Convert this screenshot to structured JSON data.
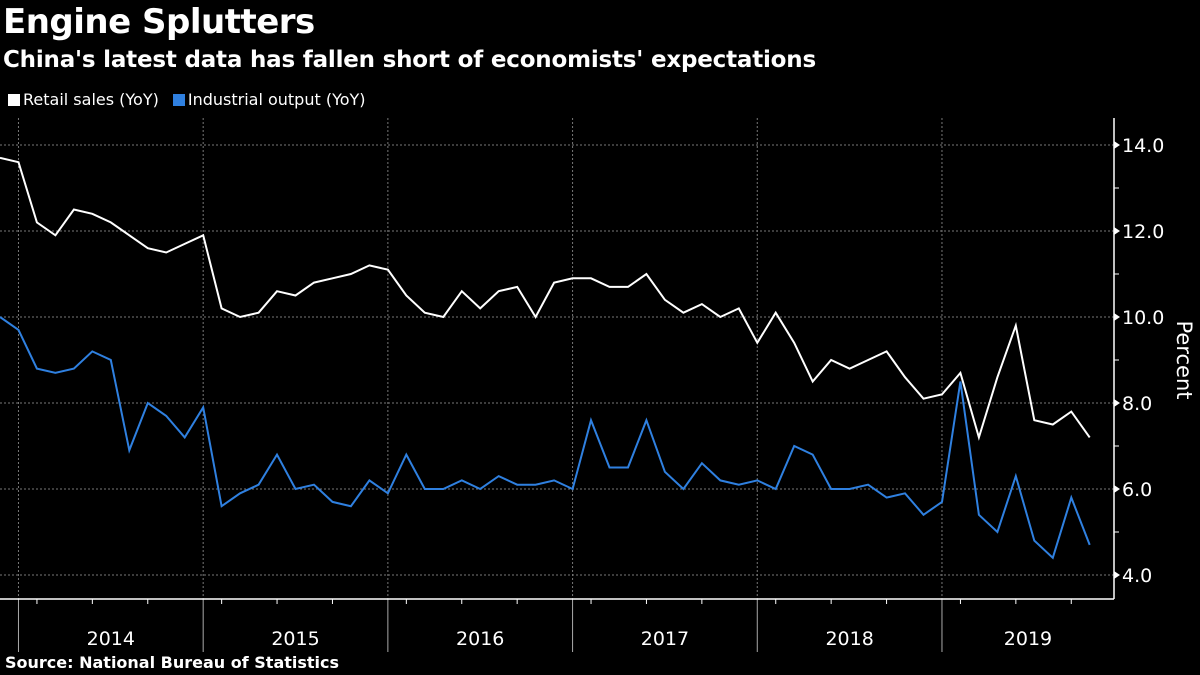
{
  "header": {
    "title": "Engine Splutters",
    "subtitle": "China's latest data has fallen short of economists' expectations"
  },
  "legend": [
    {
      "label": "Retail sales (YoY)",
      "color": "#ffffff"
    },
    {
      "label": "Industrial output (YoY)",
      "color": "#2f80e0"
    }
  ],
  "footer": {
    "source": "Source: National Bureau of Statistics"
  },
  "chart_data": {
    "type": "line",
    "title": "Engine Splutters",
    "subtitle": "China's latest data has fallen short of economists' expectations",
    "xlabel": "",
    "ylabel": "Percent",
    "ylim": [
      3.4,
      14.6
    ],
    "y_ticks": [
      4.0,
      6.0,
      8.0,
      10.0,
      12.0,
      14.0
    ],
    "y_tick_labels": [
      "4.0",
      "6.0",
      "8.0",
      "10.0",
      "12.0",
      "14.0"
    ],
    "y_axis_side": "right",
    "grid": true,
    "legend_position": "top-left",
    "year_labels": [
      "2014",
      "2015",
      "2016",
      "2017",
      "2018",
      "2019"
    ],
    "x": [
      "2013-11",
      "2013-12",
      "2014-03",
      "2014-04",
      "2014-05",
      "2014-06",
      "2014-07",
      "2014-08",
      "2014-09",
      "2014-10",
      "2014-11",
      "2014-12",
      "2015-03",
      "2015-04",
      "2015-05",
      "2015-06",
      "2015-07",
      "2015-08",
      "2015-09",
      "2015-10",
      "2015-11",
      "2015-12",
      "2016-03",
      "2016-04",
      "2016-05",
      "2016-06",
      "2016-07",
      "2016-08",
      "2016-09",
      "2016-10",
      "2016-11",
      "2016-12",
      "2017-03",
      "2017-04",
      "2017-05",
      "2017-06",
      "2017-07",
      "2017-08",
      "2017-09",
      "2017-10",
      "2017-11",
      "2017-12",
      "2018-03",
      "2018-04",
      "2018-05",
      "2018-06",
      "2018-07",
      "2018-08",
      "2018-09",
      "2018-10",
      "2018-11",
      "2018-12",
      "2019-03",
      "2019-04",
      "2019-05",
      "2019-06",
      "2019-07",
      "2019-08",
      "2019-09",
      "2019-10"
    ],
    "series": [
      {
        "name": "Retail sales (YoY)",
        "color": "#ffffff",
        "values": [
          13.7,
          13.6,
          12.2,
          11.9,
          12.5,
          12.4,
          12.2,
          11.9,
          11.6,
          11.5,
          11.7,
          11.9,
          10.2,
          10.0,
          10.1,
          10.6,
          10.5,
          10.8,
          10.9,
          11.0,
          11.2,
          11.1,
          10.5,
          10.1,
          10.0,
          10.6,
          10.2,
          10.6,
          10.7,
          10.0,
          10.8,
          10.9,
          10.9,
          10.7,
          10.7,
          11.0,
          10.4,
          10.1,
          10.3,
          10.0,
          10.2,
          9.4,
          10.1,
          9.4,
          8.5,
          9.0,
          8.8,
          9.0,
          9.2,
          8.6,
          8.1,
          8.2,
          8.7,
          7.2,
          8.6,
          9.8,
          7.6,
          7.5,
          7.8,
          7.2
        ]
      },
      {
        "name": "Industrial output (YoY)",
        "color": "#2f80e0",
        "values": [
          10.0,
          9.7,
          8.8,
          8.7,
          8.8,
          9.2,
          9.0,
          6.9,
          8.0,
          7.7,
          7.2,
          7.9,
          5.6,
          5.9,
          6.1,
          6.8,
          6.0,
          6.1,
          5.7,
          5.6,
          6.2,
          5.9,
          6.8,
          6.0,
          6.0,
          6.2,
          6.0,
          6.3,
          6.1,
          6.1,
          6.2,
          6.0,
          7.6,
          6.5,
          6.5,
          7.6,
          6.4,
          6.0,
          6.6,
          6.2,
          6.1,
          6.2,
          6.0,
          7.0,
          6.8,
          6.0,
          6.0,
          6.1,
          5.8,
          5.9,
          5.4,
          5.7,
          8.5,
          5.4,
          5.0,
          6.3,
          4.8,
          4.4,
          5.8,
          4.7
        ]
      }
    ]
  }
}
